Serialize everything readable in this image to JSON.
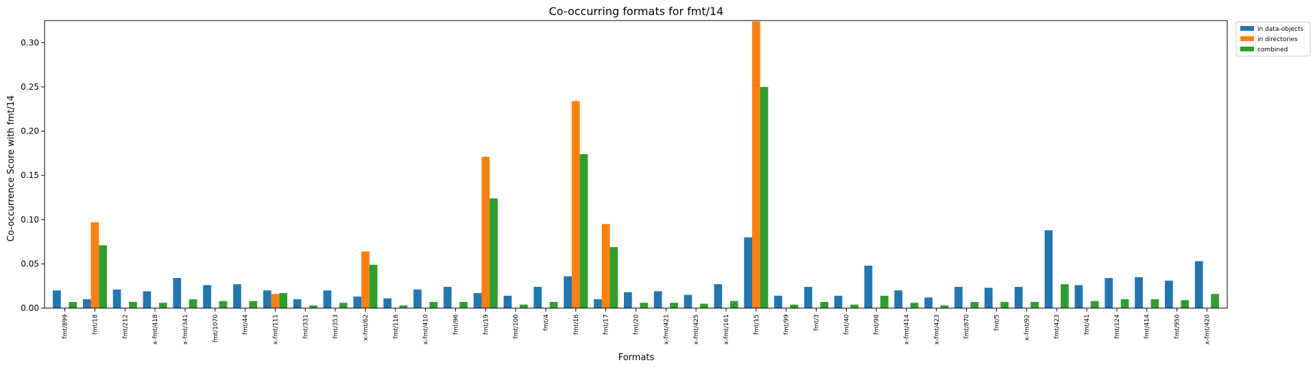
{
  "chart_data": {
    "type": "bar",
    "title": "Co-occurring formats for fmt/14",
    "xlabel": "Formats",
    "ylabel": "Co-occurrence Score with fmt/14",
    "ylim": [
      0,
      0.325
    ],
    "yticks": [
      "0.00",
      "0.05",
      "0.10",
      "0.15",
      "0.20",
      "0.25",
      "0.30"
    ],
    "grid": false,
    "legend_position": "upper right, outside plot",
    "categories": [
      "fmt/899",
      "fmt/18",
      "fmt/212",
      "x-fmt/418",
      "x-fmt/341",
      "fmt/1070",
      "fmt/44",
      "x-fmt/111",
      "fmt/331",
      "fmt/353",
      "x-fmt/62",
      "fmt/116",
      "x-fmt/410",
      "fmt/96",
      "fmt/19",
      "fmt/100",
      "fmt/4",
      "fmt/16",
      "fmt/17",
      "fmt/20",
      "x-fmt/421",
      "x-fmt/425",
      "x-fmt/161",
      "fmt/15",
      "fmt/99",
      "fmt/3",
      "fmt/40",
      "fmt/98",
      "x-fmt/414",
      "x-fmt/423",
      "fmt/870",
      "fmt/5",
      "x-fmt/92",
      "fmt/423",
      "fmt/41",
      "fmt/124",
      "fmt/414",
      "fmt/950",
      "x-fmt/420"
    ],
    "series": [
      {
        "name": "in data-objects",
        "color": "#1f77b4",
        "values": [
          0.02,
          0.01,
          0.021,
          0.019,
          0.034,
          0.026,
          0.027,
          0.02,
          0.01,
          0.02,
          0.013,
          0.011,
          0.021,
          0.024,
          0.017,
          0.014,
          0.024,
          0.036,
          0.01,
          0.018,
          0.019,
          0.015,
          0.027,
          0.08,
          0.014,
          0.024,
          0.014,
          0.048,
          0.02,
          0.012,
          0.024,
          0.023,
          0.024,
          0.088,
          0.026,
          0.034,
          0.035,
          0.031,
          0.053
        ]
      },
      {
        "name": "in directories",
        "color": "#ff7f0e",
        "values": [
          0,
          0.097,
          0,
          0,
          0,
          0,
          0,
          0.016,
          0,
          0,
          0.064,
          0,
          0,
          0,
          0.171,
          0,
          0,
          0.234,
          0.095,
          0,
          0,
          0,
          0,
          0.324,
          0,
          0,
          0,
          0,
          0,
          0,
          0,
          0,
          0,
          0,
          0,
          0,
          0,
          0,
          0
        ]
      },
      {
        "name": "combined",
        "color": "#2ca02c",
        "values": [
          0.007,
          0.071,
          0.007,
          0.006,
          0.01,
          0.008,
          0.008,
          0.017,
          0.003,
          0.006,
          0.049,
          0.003,
          0.007,
          0.007,
          0.124,
          0.004,
          0.007,
          0.174,
          0.069,
          0.006,
          0.006,
          0.005,
          0.008,
          0.25,
          0.004,
          0.007,
          0.004,
          0.014,
          0.006,
          0.003,
          0.007,
          0.007,
          0.007,
          0.027,
          0.008,
          0.01,
          0.01,
          0.009,
          0.016
        ]
      }
    ]
  }
}
